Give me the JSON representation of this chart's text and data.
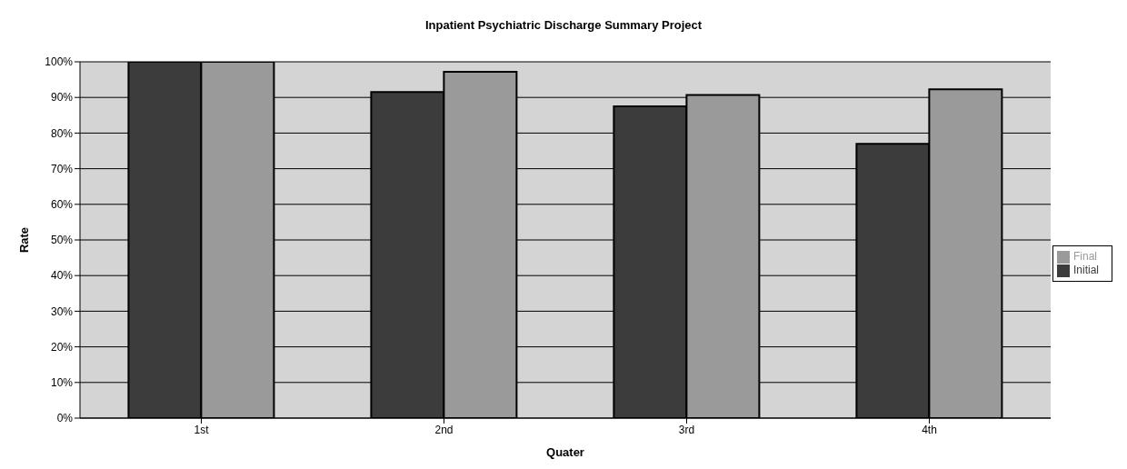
{
  "chart_data": {
    "type": "bar",
    "title": "Inpatient Psychiatric Discharge Summary Project",
    "xlabel": "Quater",
    "ylabel": "Rate",
    "categories": [
      "1st",
      "2nd",
      "3rd",
      "4th"
    ],
    "series": [
      {
        "name": "Initial",
        "color": "#3c3c3c",
        "values": [
          100,
          91.5,
          87.5,
          77
        ]
      },
      {
        "name": "Final",
        "color": "#9a9a9a",
        "values": [
          100,
          97.2,
          90.7,
          92.3
        ]
      }
    ],
    "ylim": [
      0,
      100
    ],
    "yticks": [
      {
        "value": 0,
        "label": "0%"
      },
      {
        "value": 10,
        "label": "10%"
      },
      {
        "value": 20,
        "label": "20%"
      },
      {
        "value": 30,
        "label": "30%"
      },
      {
        "value": 40,
        "label": "40%"
      },
      {
        "value": 50,
        "label": "50%"
      },
      {
        "value": 60,
        "label": "60%"
      },
      {
        "value": 70,
        "label": "70%"
      },
      {
        "value": 80,
        "label": "80%"
      },
      {
        "value": 90,
        "label": "90%"
      },
      {
        "value": 100,
        "label": "100%"
      }
    ],
    "grid": "y",
    "legend": "right"
  }
}
